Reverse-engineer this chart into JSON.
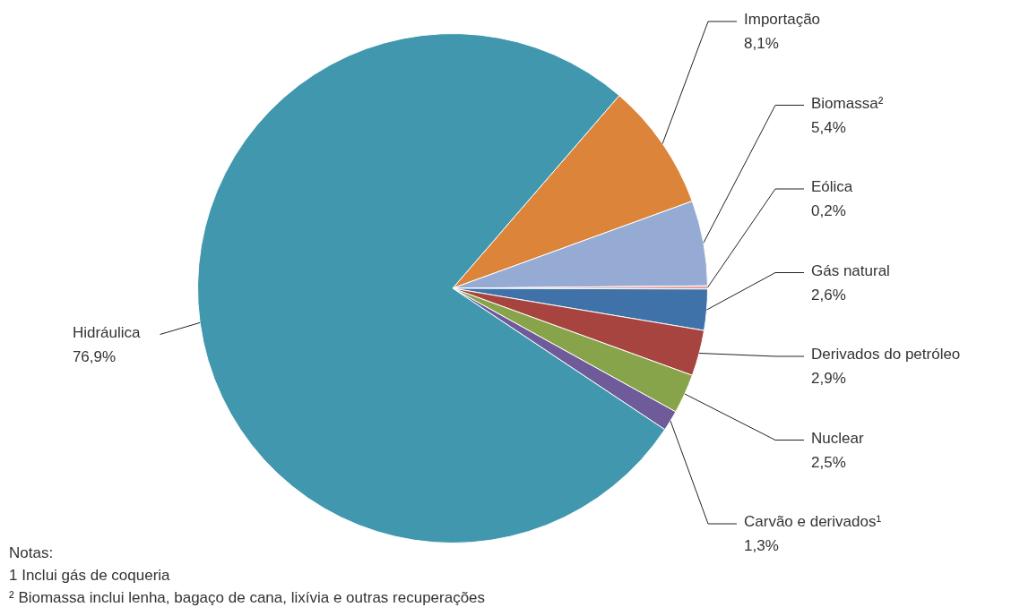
{
  "chart_data": {
    "type": "pie",
    "categories": [
      "Importação",
      "Biomassa²",
      "Eólica",
      "Gás natural",
      "Derivados do petróleo",
      "Nuclear",
      "Carvão e derivados¹",
      "Hidráulica"
    ],
    "values": [
      8.1,
      5.4,
      0.2,
      2.6,
      2.9,
      2.5,
      1.3,
      76.9
    ],
    "value_labels": [
      "8,1%",
      "5,4%",
      "0,2%",
      "2,6%",
      "2,9%",
      "2,5%",
      "1,3%",
      "76,9%"
    ],
    "colors": [
      "#dc843a",
      "#95abd3",
      "#e8a0a0",
      "#3f72a8",
      "#a84440",
      "#88a44a",
      "#6f5a9a",
      "#4198ae"
    ],
    "legend": false,
    "annotations": [
      "Notas:",
      "1 Inclui gás de coqueria",
      "² Biomassa inclui lenha, bagaço de cana, lixívia e outras recuperações"
    ]
  }
}
